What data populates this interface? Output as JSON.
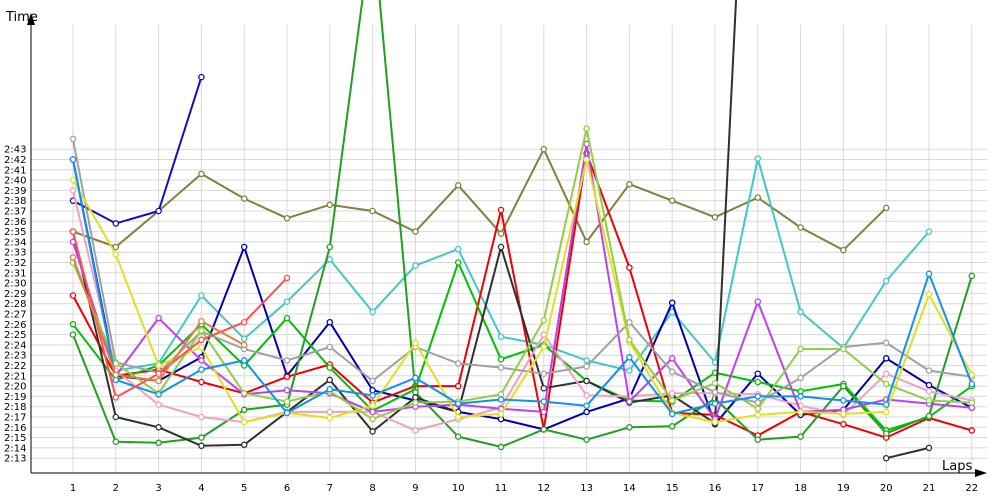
{
  "chart_data": {
    "type": "line",
    "title": "",
    "xlabel": "Laps",
    "ylabel": "Time",
    "categories": [
      "1",
      "2",
      "3",
      "4",
      "5",
      "6",
      "7",
      "8",
      "9",
      "10",
      "11",
      "12",
      "13",
      "14",
      "15",
      "16",
      "17",
      "18",
      "19",
      "20",
      "21",
      "22"
    ],
    "y_tick_labels": [
      "2:13",
      "2:14",
      "2:15",
      "2:16",
      "2:17",
      "2:18",
      "2:19",
      "2:20",
      "2:21",
      "2:22",
      "2:23",
      "2:24",
      "2:25",
      "2:26",
      "2:27",
      "2:28",
      "2:29",
      "2:30",
      "2:31",
      "2:32",
      "2:33",
      "2:34",
      "2:35",
      "2:36",
      "2:37",
      "2:38",
      "2:39",
      "2:40",
      "2:41",
      "2:42",
      "2:43"
    ],
    "ylim_seconds": [
      132,
      164
    ],
    "grid": true,
    "legend": "none",
    "series": [
      {
        "color": "#808040",
        "values": [
          155,
          153.5,
          157,
          160.6,
          158.2,
          156.3,
          157.6,
          157,
          155,
          159.5,
          154.8,
          163,
          154,
          159.6,
          158,
          156.4,
          158.3,
          155.4,
          153.2,
          157.3,
          null,
          null
        ]
      },
      {
        "color": "#40c8c8",
        "values": [
          152.5,
          141.5,
          142.2,
          148.8,
          144.6,
          148.2,
          152.3,
          147.2,
          151.7,
          153.3,
          144.8,
          144,
          142.5,
          141.5,
          147.2,
          142.3,
          162.1,
          147.2,
          143.7,
          150.2,
          155,
          null
        ]
      },
      {
        "color": "#1010c0",
        "values": [
          158,
          155.8,
          157,
          170,
          null,
          null,
          null,
          null,
          null,
          null,
          null,
          null,
          null,
          null,
          null,
          null,
          null,
          null,
          null,
          null,
          null,
          null
        ]
      },
      {
        "color": "#0000b0",
        "values": [
          162,
          141,
          140.5,
          142.8,
          153.5,
          141,
          146.2,
          139.6,
          138.6,
          137.5,
          136.8,
          135.8,
          137.5,
          138.8,
          148.1,
          136.3,
          141.2,
          137.2,
          137.7,
          142.7,
          140.1,
          137.9
        ]
      },
      {
        "color": "#ee0000",
        "values": [
          148.8,
          141,
          141.6,
          140.4,
          139.3,
          140.9,
          142.1,
          138.4,
          140,
          140,
          157.1,
          135.8,
          162.6,
          151.5,
          137.4,
          137.2,
          135.2,
          137.5,
          136.3,
          135,
          136.9,
          135.7
        ]
      },
      {
        "color": "#00c000",
        "values": [
          146,
          140.6,
          142,
          146,
          142,
          146.6,
          141.8,
          137.6,
          139.7,
          152,
          142.6,
          144,
          140.5,
          138.6,
          138.5,
          141.3,
          140.4,
          139.5,
          140.2,
          135.7,
          137,
          140
        ]
      },
      {
        "color": "#20a020",
        "values": [
          145,
          134.6,
          134.5,
          135,
          137.7,
          138.2,
          153.5,
          185,
          139.4,
          135.1,
          134.1,
          135.8,
          134.8,
          136,
          136.1,
          138.8,
          134.8,
          135.1,
          140,
          135.4,
          137.1,
          150.7
        ]
      },
      {
        "color": "#303030",
        "values": [
          155,
          137,
          136,
          134.2,
          134.3,
          137.5,
          140.6,
          135.6,
          138.9,
          137.5,
          153.5,
          139.8,
          140.5,
          138.4,
          139.1,
          136.4,
          220,
          null,
          null,
          133,
          134,
          null
        ]
      },
      {
        "color": "#f0a0c0",
        "values": [
          159,
          141.5,
          138.2,
          137,
          136.5,
          137.5,
          137.5,
          137.5,
          135.7,
          136.8,
          137.9,
          145,
          139.1,
          139,
          139.3,
          139.3,
          139.2,
          138.1,
          137.2,
          141.2,
          139.5,
          138.6
        ]
      },
      {
        "color": "#c040f0",
        "values": [
          154,
          141,
          146.6,
          142.5,
          139.2,
          139.6,
          139.3,
          137.5,
          138,
          138.2,
          137.8,
          137.5,
          163.5,
          138.5,
          142.7,
          136.8,
          148.2,
          137.5,
          137.7,
          138.7,
          138.3,
          137.9
        ]
      },
      {
        "color": "#a0a0a0",
        "values": [
          164,
          142.3,
          141.3,
          145.3,
          143.6,
          142.5,
          143.8,
          140.5,
          143.8,
          142.2,
          141.8,
          141.2,
          141.9,
          146.2,
          141.4,
          139.4,
          138.4,
          140.8,
          143.8,
          144.2,
          141.5,
          140.9
        ]
      },
      {
        "color": "#e0e020",
        "values": [
          160,
          152.8,
          142,
          143.8,
          136.5,
          137.4,
          136.9,
          138.1,
          144.2,
          137,
          137.3,
          143.8,
          162,
          144.3,
          137.4,
          136.5,
          137.2,
          137.5,
          137.3,
          137.5,
          148.9,
          141.1
        ]
      },
      {
        "color": "#90d040",
        "values": [
          152,
          142.2,
          139.3,
          145.4,
          139.3,
          138.5,
          139.5,
          136.8,
          138.4,
          138.5,
          139.2,
          146.4,
          165,
          144.5,
          138.6,
          140.3,
          137.8,
          143.6,
          143.6,
          140.2,
          138.6,
          138.4
        ]
      },
      {
        "color": "#1090f0",
        "values": [
          162,
          140.6,
          139.2,
          141.6,
          142.5,
          137.4,
          139.7,
          139.1,
          140.8,
          138.3,
          138.7,
          138.5,
          138.1,
          142.8,
          137.3,
          138.3,
          139,
          139,
          138.6,
          138.2,
          150.9,
          140.2
        ]
      },
      {
        "color": "#ff5050",
        "values": [
          155,
          138.9,
          141.2,
          144.5,
          146.2,
          150.5,
          null,
          null,
          null,
          null,
          null,
          null,
          null,
          null,
          null,
          null,
          null,
          null,
          null,
          null,
          null,
          null
        ]
      },
      {
        "color": "#e08040",
        "values": [
          152.5,
          141.1,
          140.5,
          146.3,
          144,
          null,
          null,
          null,
          null,
          null,
          null,
          null,
          null,
          null,
          null,
          null,
          null,
          null,
          null,
          null,
          null,
          null
        ]
      }
    ]
  }
}
